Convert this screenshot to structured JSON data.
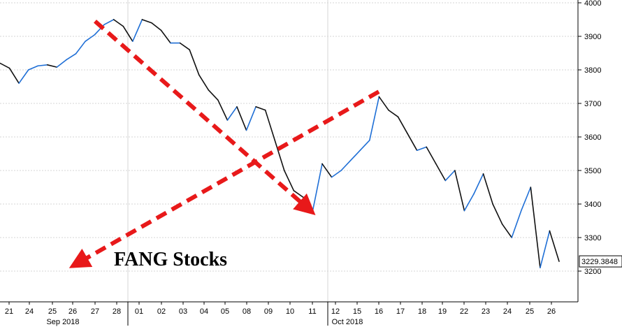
{
  "chart_data": {
    "type": "line",
    "chart_label": "FANG Stocks",
    "last_value_label": "3229.3848",
    "ylim": [
      3100,
      4000
    ],
    "yticks": [
      3200,
      3300,
      3400,
      3500,
      3600,
      3700,
      3800,
      3900,
      4000
    ],
    "ytick_labels": [
      "3200",
      "3300",
      "3400",
      "3500",
      "3600",
      "3700",
      "3800",
      "3900",
      "4000"
    ],
    "day_labels": [
      "21",
      "24",
      "25",
      "26",
      "27",
      "28",
      "01",
      "02",
      "03",
      "04",
      "05",
      "08",
      "09",
      "10",
      "11",
      "12",
      "15",
      "16",
      "17",
      "18",
      "19",
      "22",
      "23",
      "24",
      "25",
      "26"
    ],
    "month_labels": [
      "Sep 2018",
      "Oct 2018"
    ],
    "grid": true,
    "colors": {
      "up": "#1f6fd6",
      "down": "#111111",
      "arrow": "#e8191a",
      "axis": "#000000",
      "grid": "#d6d6d6"
    },
    "series": [
      {
        "values": [
          3820,
          3805,
          3760,
          3800,
          3812,
          3815,
          3808,
          3830,
          3848,
          3885,
          3905,
          3935,
          3950,
          3930,
          3885,
          3950,
          3940,
          3918,
          3880,
          3880,
          3860,
          3785,
          3740,
          3710,
          3650,
          3690,
          3620,
          3690,
          3680,
          3590,
          3500,
          3440,
          3420,
          3380,
          3520,
          3480,
          3500,
          3530,
          3560,
          3590,
          3720,
          3680,
          3660,
          3610,
          3560,
          3570,
          3520,
          3470,
          3500,
          3380,
          3430,
          3490,
          3400,
          3340,
          3300,
          3380,
          3450,
          3210,
          3320,
          3229
        ]
      }
    ],
    "annotations": [
      {
        "type": "trend-arrow",
        "from_day": "27",
        "from_value": 3945,
        "to_day": "11",
        "to_value": 3375
      },
      {
        "type": "trend-arrow",
        "from_day": "16",
        "from_value": 3735,
        "to_day": "26",
        "to_value": 3215
      }
    ]
  }
}
